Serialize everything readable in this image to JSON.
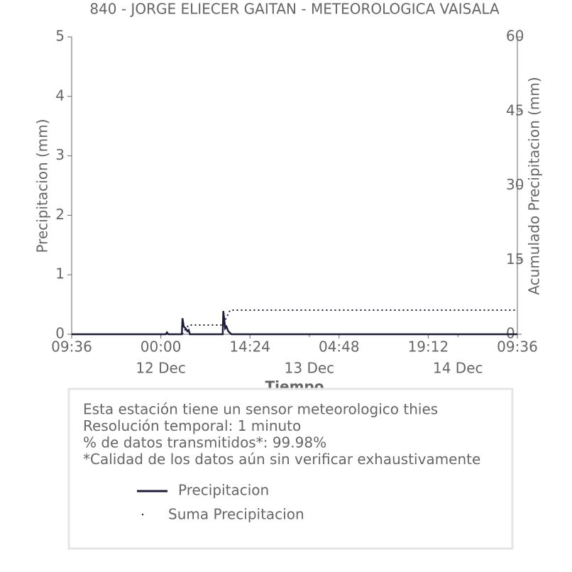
{
  "chart_data": {
    "type": "line",
    "title": "840 - JORGE ELIECER GAITAN - METEOROLOGICA VAISALA",
    "x_label": "Tiempo",
    "y_label": "Precipitacion (mm)",
    "y2_label": "Acumulado Precipitacion (mm)",
    "xlim": [
      0,
      72
    ],
    "xticks": [
      {
        "value": 0,
        "label": "09:36"
      },
      {
        "value": 14.4,
        "label": "00:00"
      },
      {
        "value": 28.8,
        "label": "14:24"
      },
      {
        "value": 43.2,
        "label": "04:48"
      },
      {
        "value": 57.6,
        "label": "19:12"
      },
      {
        "value": 72,
        "label": "09:36"
      }
    ],
    "xticks_dates": [
      {
        "value": 14.4,
        "label": "12 Dec"
      },
      {
        "value": 38.4,
        "label": "13 Dec"
      },
      {
        "value": 62.4,
        "label": "14 Dec"
      }
    ],
    "ylim": [
      0,
      5
    ],
    "yticks": [
      0,
      1,
      2,
      3,
      4,
      5
    ],
    "y2lim": [
      0,
      60
    ],
    "y2ticks": [
      0,
      15,
      30,
      45,
      60
    ],
    "series": [
      {
        "name": "Precipitacion",
        "color": "#1c1c3c",
        "style": "solid",
        "x": [
          0,
          15.2,
          15.4,
          15.6,
          17.8,
          17.9,
          18.1,
          18.4,
          18.7,
          18.9,
          19.1,
          24.4,
          24.5,
          24.8,
          25.0,
          25.3,
          25.6,
          25.8,
          72
        ],
        "values": [
          0,
          0,
          0.03,
          0,
          0,
          0.27,
          0.13,
          0.1,
          0.05,
          0.07,
          0,
          0,
          0.39,
          0.1,
          0.13,
          0.05,
          0.02,
          0,
          0
        ]
      },
      {
        "name": "Suma Precipitacion",
        "color": "#1c1c3c",
        "style": "dotted",
        "axis": "y2",
        "x": [
          0,
          17.8,
          18.9,
          24.4,
          25.6,
          72
        ],
        "values": [
          0,
          0,
          1.86,
          1.86,
          4.87,
          4.87
        ]
      }
    ],
    "info_lines": [
      "Esta estación tiene un sensor meteorologico thies",
      "Resolución temporal: 1 minuto",
      "% de datos transmitidos*: 99.98%",
      "*Calidad de los datos aún sin verificar exhaustivamente"
    ]
  }
}
